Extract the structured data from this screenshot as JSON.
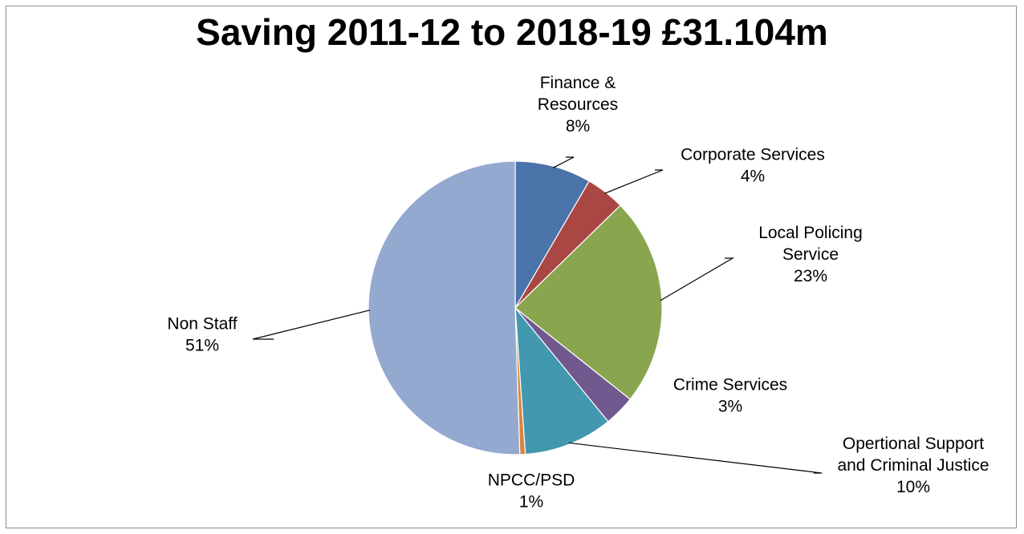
{
  "chart_data": {
    "type": "pie",
    "title": "Saving 2011-12 to 2018-19 £31.104m",
    "slices": [
      {
        "label": [
          "Finance &",
          "Resources"
        ],
        "pct_label": "8%",
        "value": 8.4,
        "color": "#4a74aa"
      },
      {
        "label": [
          "Corporate Services"
        ],
        "pct_label": "4%",
        "value": 4.3,
        "color": "#aa4643"
      },
      {
        "label": [
          "Local Policing",
          "Service"
        ],
        "pct_label": "23%",
        "value": 23.0,
        "color": "#89a54e"
      },
      {
        "label": [
          "Crime Services"
        ],
        "pct_label": "3%",
        "value": 3.4,
        "color": "#71588f"
      },
      {
        "label": [
          "Opertional Support",
          "and Criminal Justice"
        ],
        "pct_label": "10%",
        "value": 9.8,
        "color": "#4198af"
      },
      {
        "label": [
          "NPCC/PSD"
        ],
        "pct_label": "1%",
        "value": 0.6,
        "color": "#db843d"
      },
      {
        "label": [
          "Non Staff"
        ],
        "pct_label": "51%",
        "value": 50.5,
        "color": "#93a9cf"
      }
    ]
  }
}
